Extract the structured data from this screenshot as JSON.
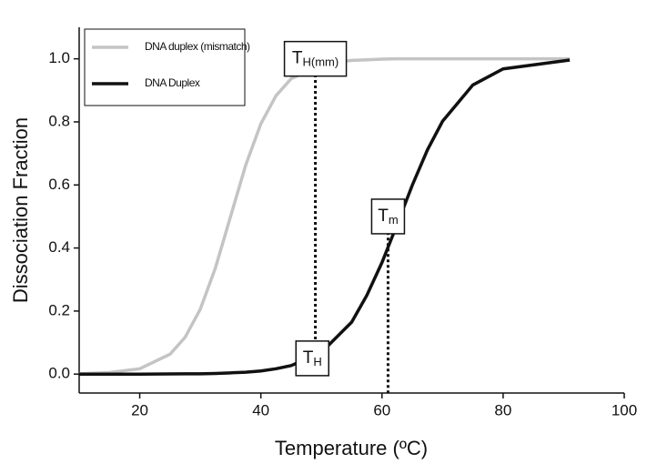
{
  "chart_data": {
    "type": "line",
    "xlabel": "Temperature (ºC)",
    "ylabel": "Dissociation Fraction",
    "x": [
      10,
      15,
      20,
      25,
      27.5,
      30,
      32.5,
      35,
      37.5,
      40,
      42.5,
      45,
      50,
      55,
      57.5,
      60,
      62.5,
      65,
      67.5,
      70,
      75,
      80,
      91
    ],
    "series": [
      {
        "name": "DNA duplex (mismatch)",
        "color": "#c4c4c4",
        "values": [
          0.001,
          0.005,
          0.017,
          0.063,
          0.117,
          0.206,
          0.337,
          0.5,
          0.663,
          0.794,
          0.883,
          0.937,
          0.983,
          0.995,
          0.997,
          0.999,
          1.0,
          1.0,
          1.0,
          1.0,
          1.0,
          1.0,
          1.0
        ]
      },
      {
        "name": "DNA Duplex",
        "color": "#111111",
        "values": [
          0,
          0,
          0,
          0.0005,
          0.001,
          0.001,
          0.002,
          0.004,
          0.006,
          0.01,
          0.017,
          0.027,
          0.069,
          0.165,
          0.25,
          0.354,
          0.475,
          0.599,
          0.711,
          0.802,
          0.917,
          0.968,
          0.996
        ]
      }
    ],
    "xlim": [
      10,
      100
    ],
    "xticks": [
      20,
      40,
      60,
      80,
      100
    ],
    "ylim": [
      -0.06,
      1.1
    ],
    "yticks": [
      {
        "value": 0,
        "label": "0.0"
      },
      {
        "value": 0.2,
        "label": "0.2"
      },
      {
        "value": 0.4,
        "label": "0.4"
      },
      {
        "value": 0.6,
        "label": "0.6"
      },
      {
        "value": 0.8,
        "label": "0.8"
      },
      {
        "value": 1,
        "label": "1.0"
      }
    ],
    "legend": "upper left",
    "annotations": [
      {
        "main": "T",
        "sub": "H(mm)",
        "x": 49,
        "y": 1.0,
        "line_from": 0.95,
        "line_to": 0
      },
      {
        "main": "T",
        "sub": "m",
        "x": 61,
        "y": 0.5,
        "line_from": 0.45,
        "line_to": -0.06
      },
      {
        "main": "T",
        "sub": "H",
        "x": 48.5,
        "y": 0.05
      }
    ]
  }
}
